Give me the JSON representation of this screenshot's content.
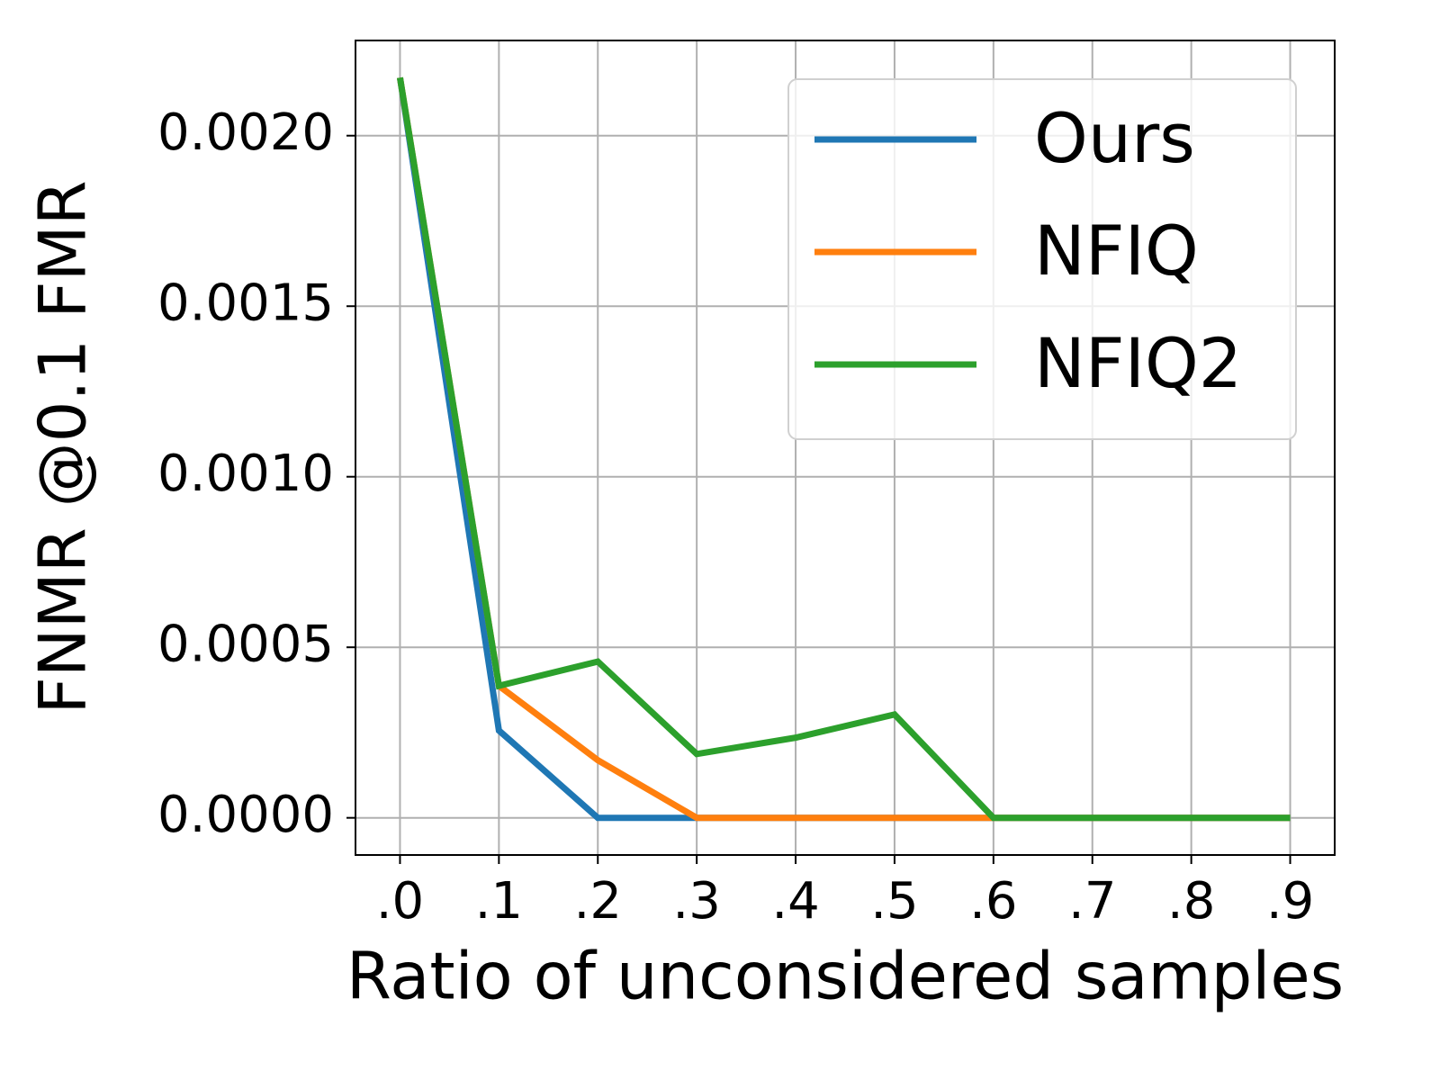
{
  "chart_data": {
    "type": "line",
    "xlabel": "Ratio of unconsidered samples",
    "ylabel": "FNMR @0.1 FMR",
    "x": [
      0.0,
      0.1,
      0.2,
      0.3,
      0.4,
      0.5,
      0.6,
      0.7,
      0.8,
      0.9
    ],
    "series": [
      {
        "name": "Ours",
        "color": "#1f77b4",
        "values": [
          0.00217,
          0.000256,
          0,
          0,
          0,
          0,
          0,
          0,
          0,
          0
        ]
      },
      {
        "name": "NFIQ",
        "color": "#ff7f0e",
        "values": [
          0.00217,
          0.000387,
          0.000169,
          0,
          0,
          0,
          0,
          0,
          0,
          0
        ]
      },
      {
        "name": "NFIQ2",
        "color": "#2ca02c",
        "values": [
          0.00217,
          0.000387,
          0.000458,
          0.000187,
          0.000235,
          0.000303,
          0,
          0,
          0,
          0
        ]
      }
    ],
    "xlim": [
      -0.045,
      0.945
    ],
    "xticks": [
      {
        "value": 0.0,
        "label": ".0"
      },
      {
        "value": 0.1,
        "label": ".1"
      },
      {
        "value": 0.2,
        "label": ".2"
      },
      {
        "value": 0.3,
        "label": ".3"
      },
      {
        "value": 0.4,
        "label": ".4"
      },
      {
        "value": 0.5,
        "label": ".5"
      },
      {
        "value": 0.6,
        "label": ".6"
      },
      {
        "value": 0.7,
        "label": ".7"
      },
      {
        "value": 0.8,
        "label": ".8"
      },
      {
        "value": 0.9,
        "label": ".9"
      }
    ],
    "ylim": [
      -0.000109,
      0.002279
    ],
    "yticks": [
      {
        "value": 0,
        "label": "0.0000"
      },
      {
        "value": 0.0005,
        "label": "0.0005"
      },
      {
        "value": 0.001,
        "label": "0.0010"
      },
      {
        "value": 0.0015,
        "label": "0.0015"
      },
      {
        "value": 0.002,
        "label": "0.0020"
      }
    ],
    "grid": true,
    "legend": "upper right"
  }
}
